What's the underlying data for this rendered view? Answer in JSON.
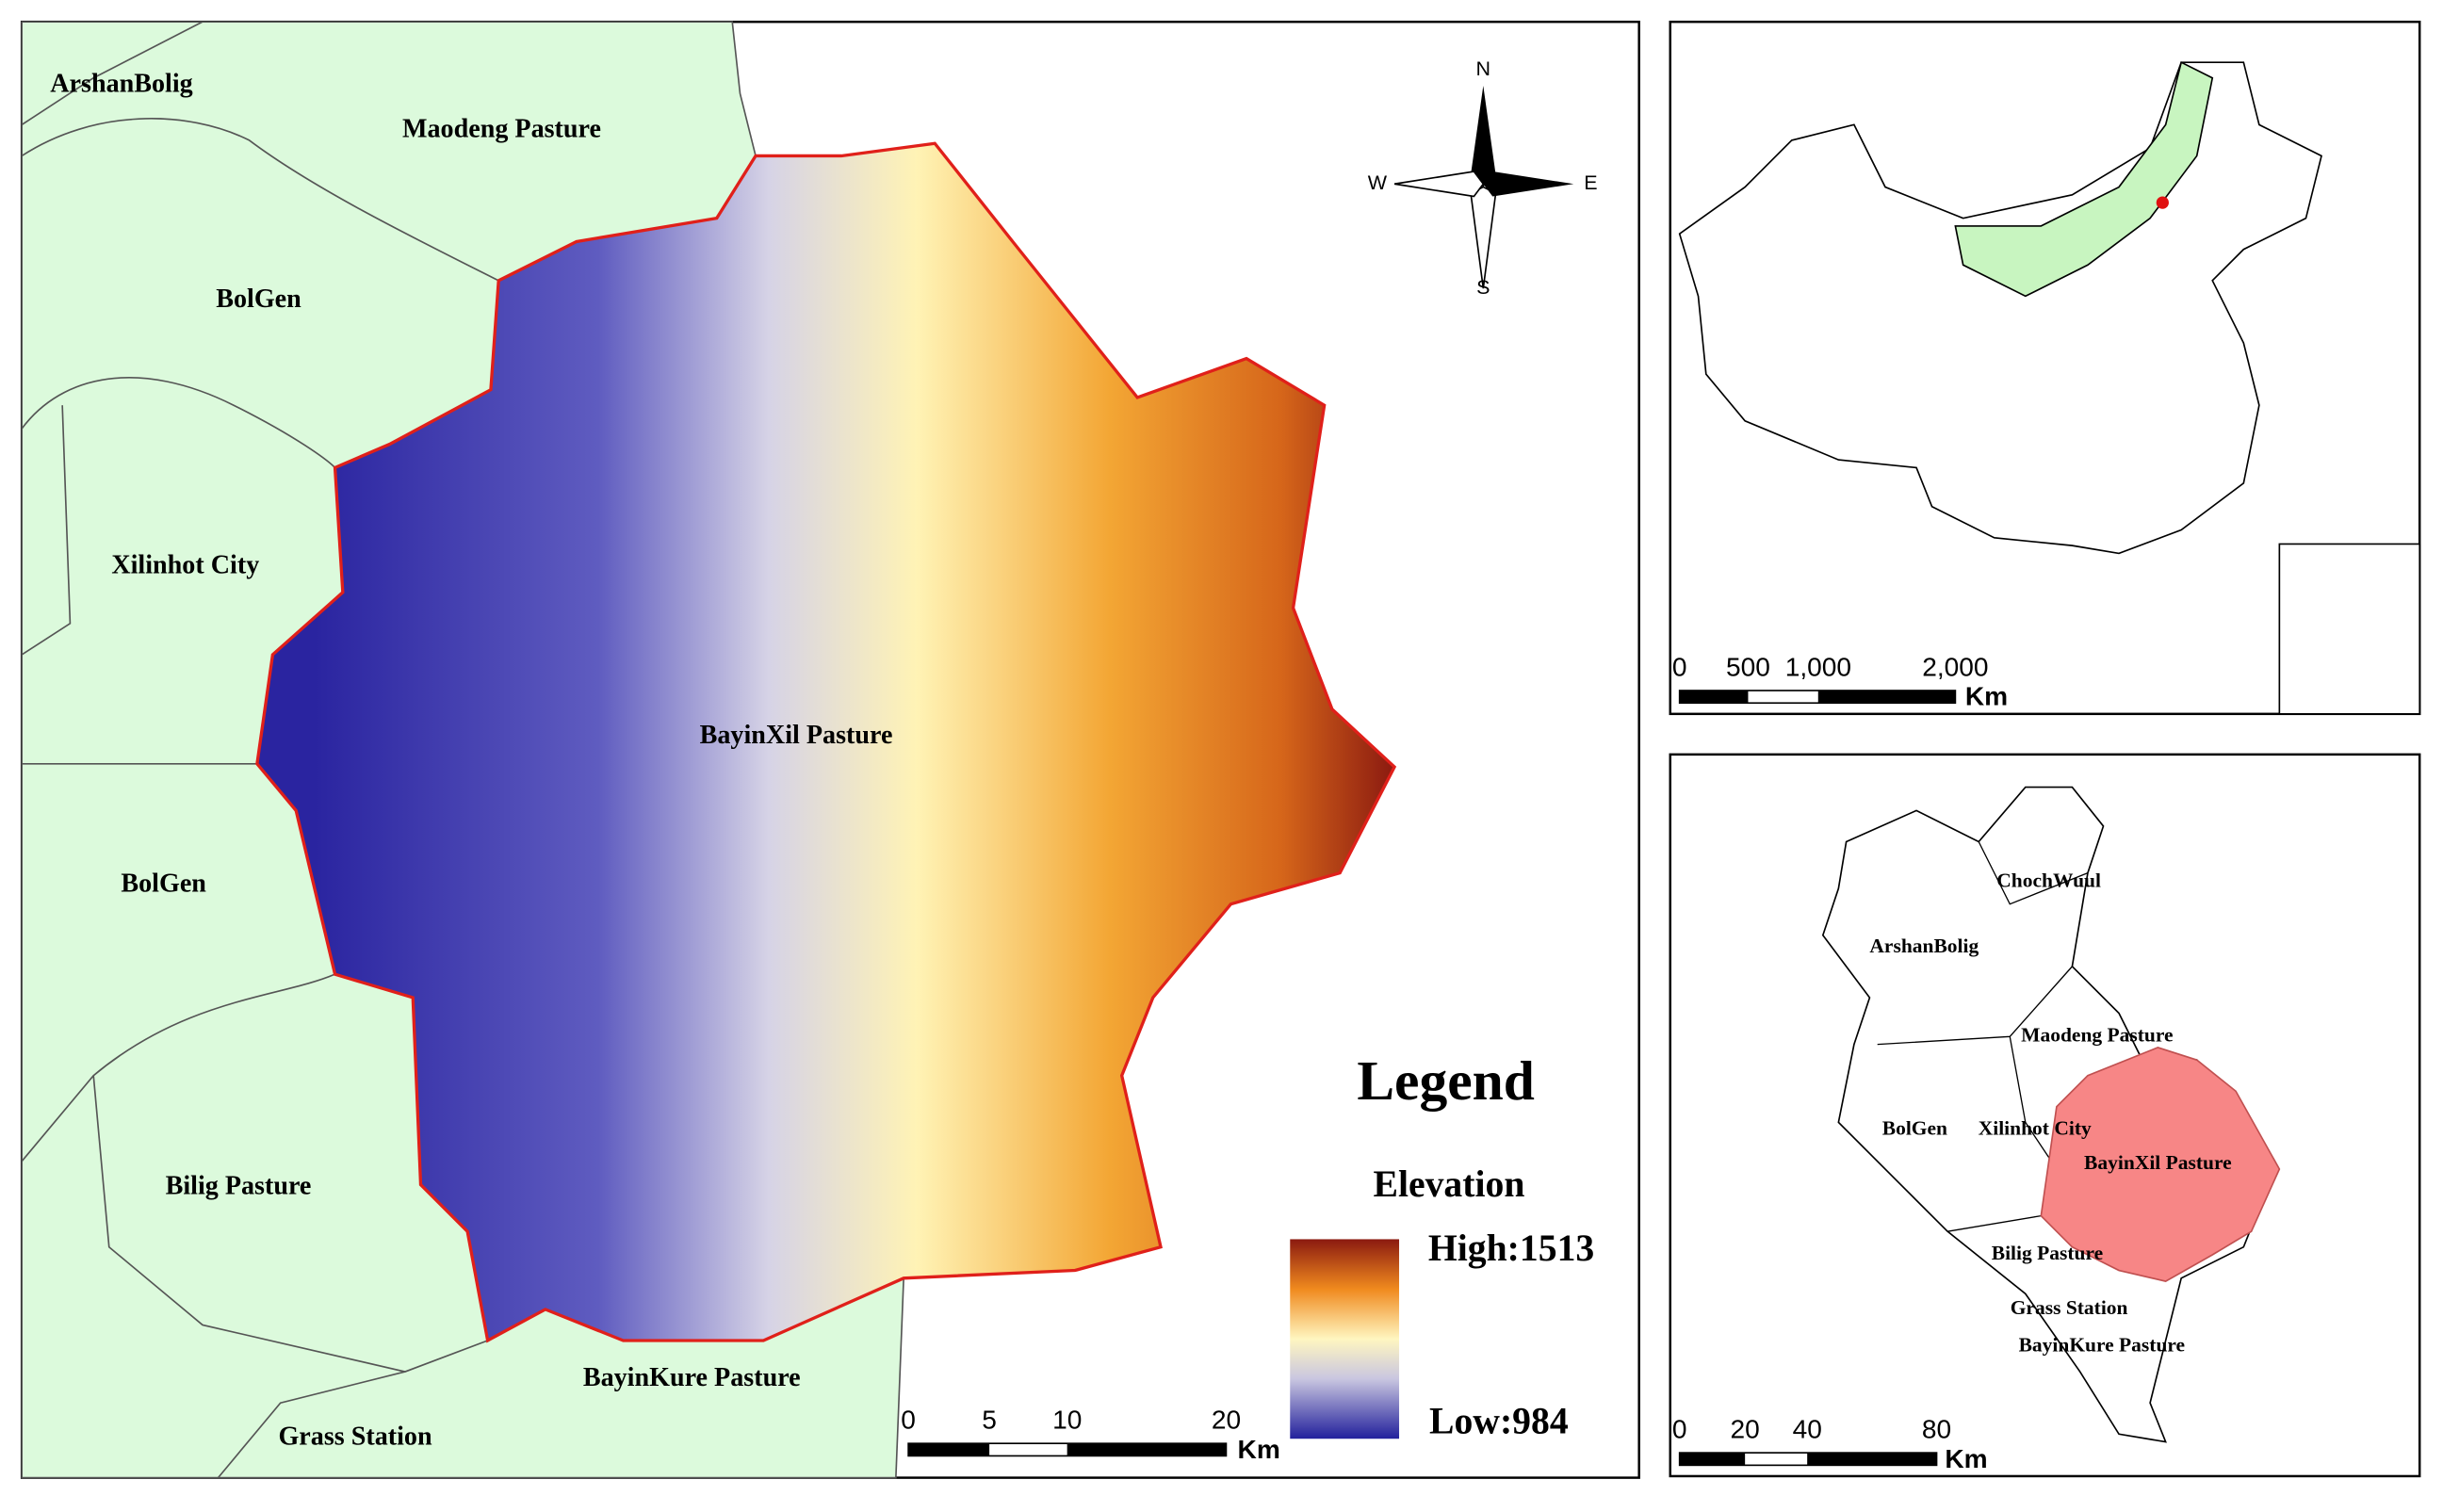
{
  "main_map": {
    "regions": [
      "ArshanBolig",
      "Maodeng Pasture",
      "BolGen",
      "Xilinhot City",
      "BolGen",
      "Bilig Pasture",
      "BayinKure Pasture",
      "Grass Station"
    ],
    "study_area": "BayinXil Pasture",
    "compass": {
      "n": "N",
      "s": "S",
      "e": "E",
      "w": "W"
    },
    "legend": {
      "title": "Legend",
      "subtitle": "Elevation",
      "high": "High:1513",
      "low": "Low:984"
    },
    "scale_bar": {
      "ticks": [
        "0",
        "5",
        "10",
        "20"
      ],
      "unit": "Km"
    }
  },
  "location_map": {
    "scale_bar": {
      "ticks": [
        "0",
        "500",
        "1,000",
        "2,000"
      ],
      "unit": "Km"
    }
  },
  "district_map": {
    "labels": [
      "ChochWuul",
      "ArshanBolig",
      "Maodeng Pasture",
      "BolGen",
      "Xilinhot City",
      "BayinXil Pasture",
      "Bilig Pasture",
      "Grass Station",
      "BayinKure Pasture"
    ],
    "scale_bar": {
      "ticks": [
        "0",
        "20",
        "40",
        "80"
      ],
      "unit": "Km"
    }
  }
}
